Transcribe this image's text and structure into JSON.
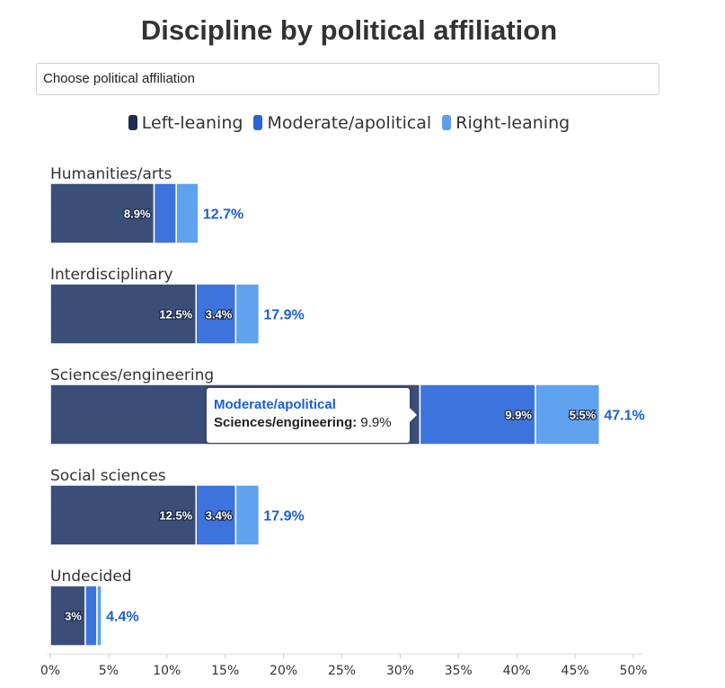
{
  "title": "Discipline by political affiliation",
  "select": {
    "value": "Choose political affiliation"
  },
  "legend": [
    {
      "name": "Left-leaning",
      "color": "#1f2d50"
    },
    {
      "name": "Moderate/apolitical",
      "color": "#2a63d8"
    },
    {
      "name": "Right-leaning",
      "color": "#5aa0ee"
    }
  ],
  "tooltip": {
    "series": "Moderate/apolitical",
    "category": "Sciences/engineering:",
    "value": "9.9%"
  },
  "chart_data": {
    "type": "bar",
    "orientation": "horizontal",
    "stacked": true,
    "title": "Discipline by political affiliation",
    "categories": [
      "Humanities/arts",
      "Interdisciplinary",
      "Sciences/engineering",
      "Social sciences",
      "Undecided"
    ],
    "series": [
      {
        "name": "Left-leaning",
        "color": "#3a4e78",
        "values": [
          8.9,
          12.5,
          31.7,
          12.5,
          3
        ],
        "labels": [
          "8.9%",
          "12.5%",
          "",
          "12.5%",
          "3%"
        ]
      },
      {
        "name": "Moderate/apolitical",
        "color": "#3d73dc",
        "values": [
          1.9,
          3.4,
          9.9,
          3.4,
          1
        ],
        "labels": [
          "",
          "3.4%",
          "9.9%",
          "3.4%",
          ""
        ]
      },
      {
        "name": "Right-leaning",
        "color": "#5fa2ee",
        "values": [
          1.9,
          2,
          5.5,
          2,
          0.4
        ],
        "labels": [
          "",
          "",
          "5.5%",
          "",
          ""
        ]
      }
    ],
    "totals": [
      "12.7%",
      "17.9%",
      "47.1%",
      "17.9%",
      "4.4%"
    ],
    "xlim": [
      0,
      50
    ],
    "xticks": [
      0,
      5,
      10,
      15,
      20,
      25,
      30,
      35,
      40,
      45,
      50
    ],
    "xtick_labels": [
      "0%",
      "5%",
      "10%",
      "15%",
      "20%",
      "25%",
      "30%",
      "35%",
      "40%",
      "45%",
      "50%"
    ],
    "grid": false,
    "legend_position": "top"
  }
}
